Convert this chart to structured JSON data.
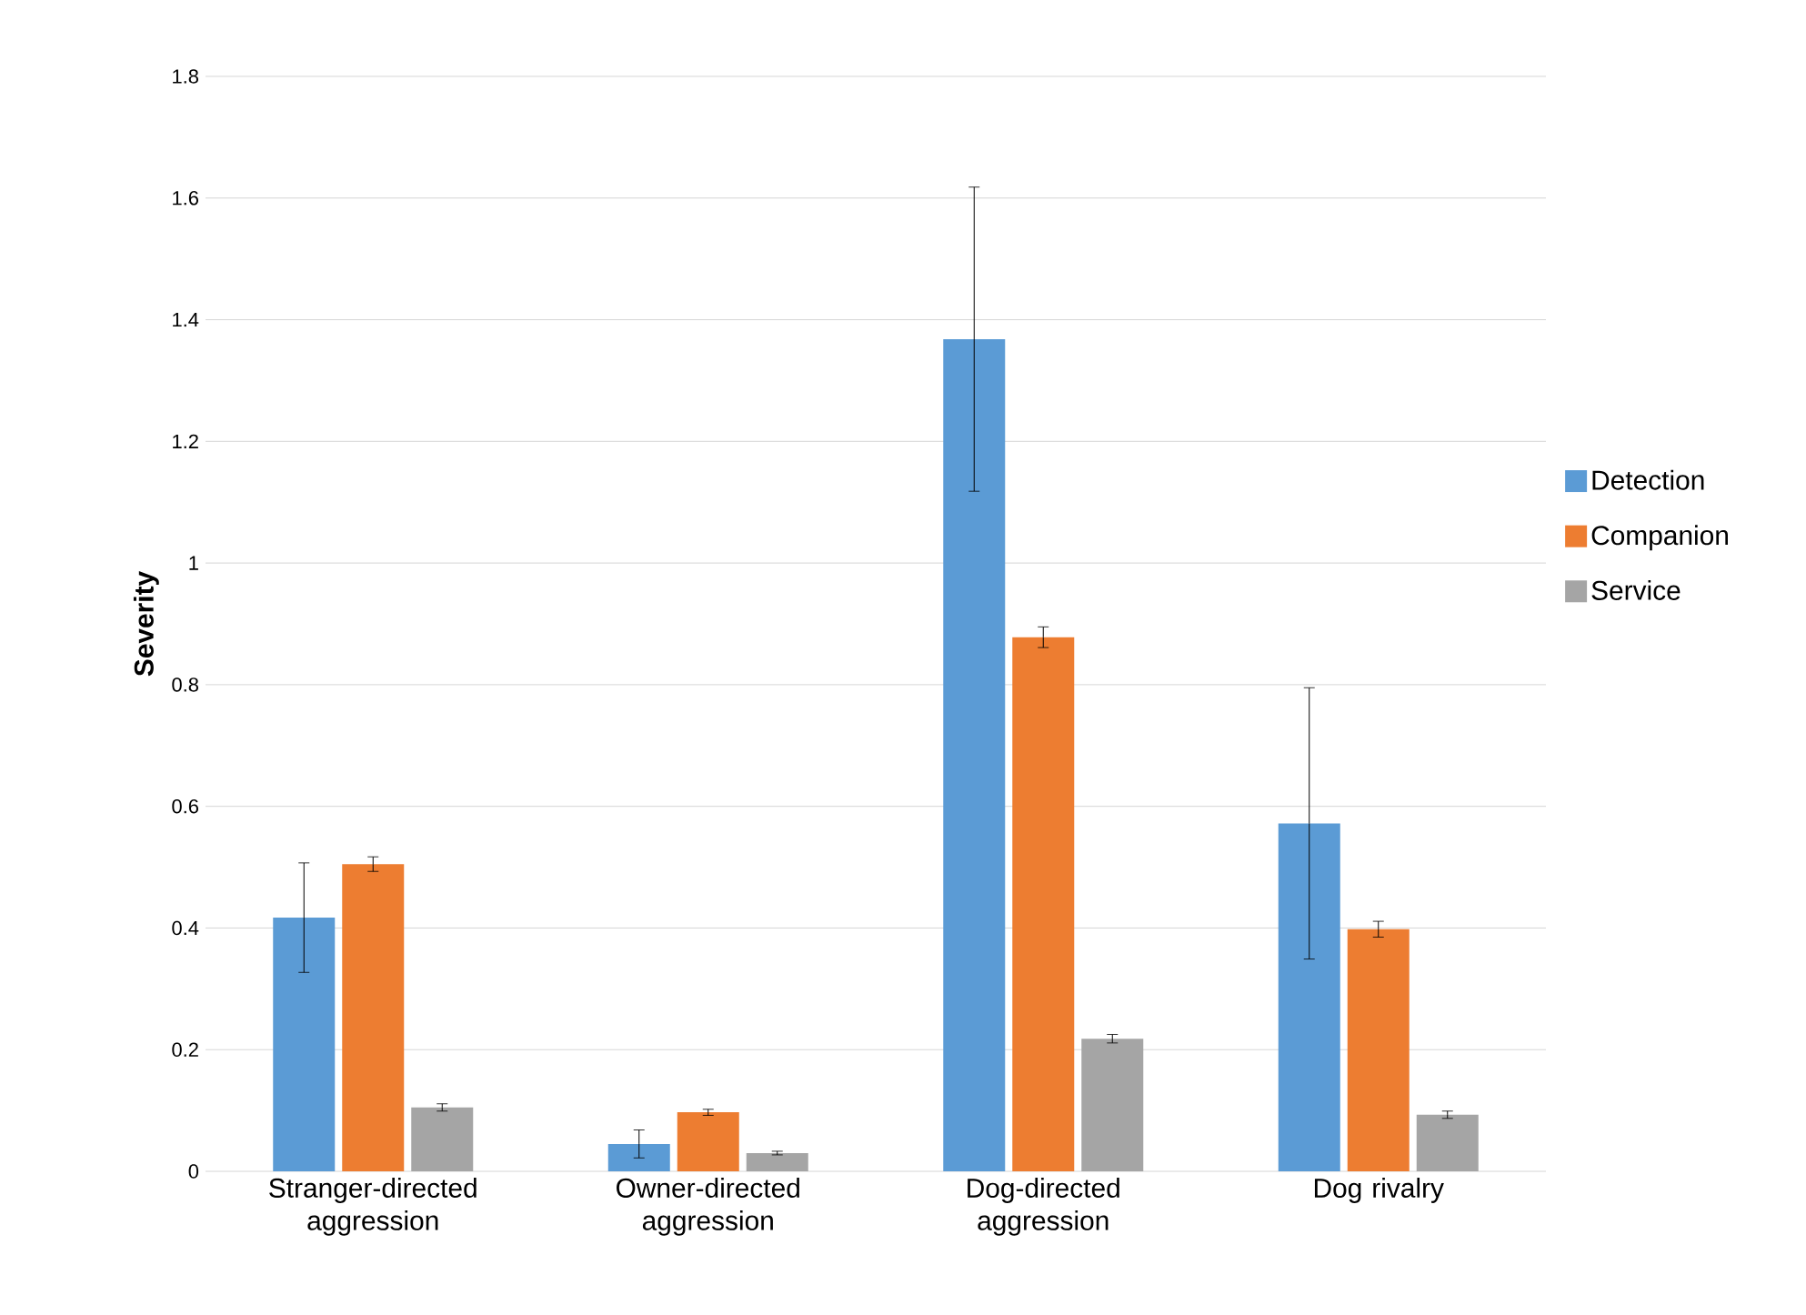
{
  "chart_data": {
    "type": "bar",
    "ylabel": "Severity",
    "categories": [
      "Stranger-directed aggression",
      "Owner-directed aggression",
      "Dog-directed aggression",
      "Dog rivalry"
    ],
    "series": [
      {
        "name": "Detection",
        "color": "#5b9bd5",
        "values": [
          0.417,
          0.045,
          1.368,
          0.572
        ],
        "errors": [
          0.09,
          0.023,
          0.25,
          0.223
        ]
      },
      {
        "name": "Companion",
        "color": "#ed7d31",
        "values": [
          0.505,
          0.097,
          0.878,
          0.398
        ],
        "errors": [
          0.012,
          0.005,
          0.017,
          0.013
        ]
      },
      {
        "name": "Service",
        "color": "#a5a5a5",
        "values": [
          0.105,
          0.03,
          0.218,
          0.093
        ],
        "errors": [
          0.006,
          0.003,
          0.007,
          0.006
        ]
      }
    ],
    "ylim": [
      0,
      1.8
    ],
    "yticks": [
      0,
      0.2,
      0.4,
      0.6,
      0.8,
      1,
      1.2,
      1.4,
      1.6,
      1.8
    ],
    "grid": "y",
    "legend": "right"
  }
}
